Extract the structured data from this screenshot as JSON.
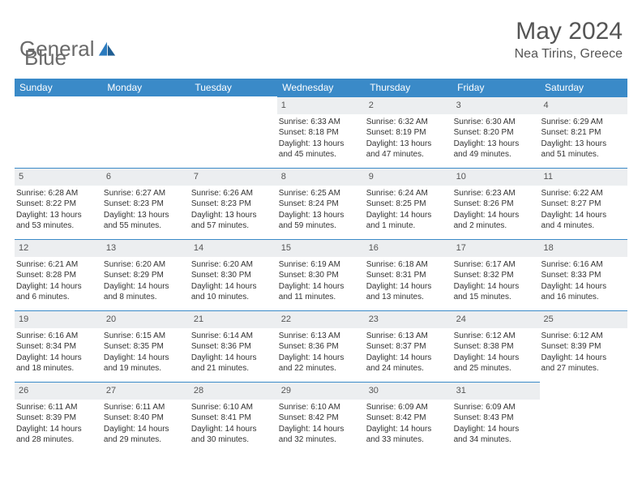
{
  "logo": {
    "text_a": "General",
    "text_b": "Blue"
  },
  "header": {
    "month": "May 2024",
    "location": "Nea Tirins, Greece"
  },
  "day_names": [
    "Sunday",
    "Monday",
    "Tuesday",
    "Wednesday",
    "Thursday",
    "Friday",
    "Saturday"
  ],
  "colors": {
    "header_bg": "#3a8ac8",
    "header_text": "#ffffff",
    "daynum_bg": "#eceef0",
    "border": "#3a8ac8",
    "text": "#333333",
    "brand_blue": "#2b7bbf",
    "brand_gray": "#6a6a6a"
  },
  "weeks": [
    [
      {
        "empty": true
      },
      {
        "empty": true
      },
      {
        "empty": true
      },
      {
        "day": "1",
        "sunrise": "Sunrise: 6:33 AM",
        "sunset": "Sunset: 8:18 PM",
        "dl1": "Daylight: 13 hours",
        "dl2": "and 45 minutes."
      },
      {
        "day": "2",
        "sunrise": "Sunrise: 6:32 AM",
        "sunset": "Sunset: 8:19 PM",
        "dl1": "Daylight: 13 hours",
        "dl2": "and 47 minutes."
      },
      {
        "day": "3",
        "sunrise": "Sunrise: 6:30 AM",
        "sunset": "Sunset: 8:20 PM",
        "dl1": "Daylight: 13 hours",
        "dl2": "and 49 minutes."
      },
      {
        "day": "4",
        "sunrise": "Sunrise: 6:29 AM",
        "sunset": "Sunset: 8:21 PM",
        "dl1": "Daylight: 13 hours",
        "dl2": "and 51 minutes."
      }
    ],
    [
      {
        "day": "5",
        "sunrise": "Sunrise: 6:28 AM",
        "sunset": "Sunset: 8:22 PM",
        "dl1": "Daylight: 13 hours",
        "dl2": "and 53 minutes."
      },
      {
        "day": "6",
        "sunrise": "Sunrise: 6:27 AM",
        "sunset": "Sunset: 8:23 PM",
        "dl1": "Daylight: 13 hours",
        "dl2": "and 55 minutes."
      },
      {
        "day": "7",
        "sunrise": "Sunrise: 6:26 AM",
        "sunset": "Sunset: 8:23 PM",
        "dl1": "Daylight: 13 hours",
        "dl2": "and 57 minutes."
      },
      {
        "day": "8",
        "sunrise": "Sunrise: 6:25 AM",
        "sunset": "Sunset: 8:24 PM",
        "dl1": "Daylight: 13 hours",
        "dl2": "and 59 minutes."
      },
      {
        "day": "9",
        "sunrise": "Sunrise: 6:24 AM",
        "sunset": "Sunset: 8:25 PM",
        "dl1": "Daylight: 14 hours",
        "dl2": "and 1 minute."
      },
      {
        "day": "10",
        "sunrise": "Sunrise: 6:23 AM",
        "sunset": "Sunset: 8:26 PM",
        "dl1": "Daylight: 14 hours",
        "dl2": "and 2 minutes."
      },
      {
        "day": "11",
        "sunrise": "Sunrise: 6:22 AM",
        "sunset": "Sunset: 8:27 PM",
        "dl1": "Daylight: 14 hours",
        "dl2": "and 4 minutes."
      }
    ],
    [
      {
        "day": "12",
        "sunrise": "Sunrise: 6:21 AM",
        "sunset": "Sunset: 8:28 PM",
        "dl1": "Daylight: 14 hours",
        "dl2": "and 6 minutes."
      },
      {
        "day": "13",
        "sunrise": "Sunrise: 6:20 AM",
        "sunset": "Sunset: 8:29 PM",
        "dl1": "Daylight: 14 hours",
        "dl2": "and 8 minutes."
      },
      {
        "day": "14",
        "sunrise": "Sunrise: 6:20 AM",
        "sunset": "Sunset: 8:30 PM",
        "dl1": "Daylight: 14 hours",
        "dl2": "and 10 minutes."
      },
      {
        "day": "15",
        "sunrise": "Sunrise: 6:19 AM",
        "sunset": "Sunset: 8:30 PM",
        "dl1": "Daylight: 14 hours",
        "dl2": "and 11 minutes."
      },
      {
        "day": "16",
        "sunrise": "Sunrise: 6:18 AM",
        "sunset": "Sunset: 8:31 PM",
        "dl1": "Daylight: 14 hours",
        "dl2": "and 13 minutes."
      },
      {
        "day": "17",
        "sunrise": "Sunrise: 6:17 AM",
        "sunset": "Sunset: 8:32 PM",
        "dl1": "Daylight: 14 hours",
        "dl2": "and 15 minutes."
      },
      {
        "day": "18",
        "sunrise": "Sunrise: 6:16 AM",
        "sunset": "Sunset: 8:33 PM",
        "dl1": "Daylight: 14 hours",
        "dl2": "and 16 minutes."
      }
    ],
    [
      {
        "day": "19",
        "sunrise": "Sunrise: 6:16 AM",
        "sunset": "Sunset: 8:34 PM",
        "dl1": "Daylight: 14 hours",
        "dl2": "and 18 minutes."
      },
      {
        "day": "20",
        "sunrise": "Sunrise: 6:15 AM",
        "sunset": "Sunset: 8:35 PM",
        "dl1": "Daylight: 14 hours",
        "dl2": "and 19 minutes."
      },
      {
        "day": "21",
        "sunrise": "Sunrise: 6:14 AM",
        "sunset": "Sunset: 8:36 PM",
        "dl1": "Daylight: 14 hours",
        "dl2": "and 21 minutes."
      },
      {
        "day": "22",
        "sunrise": "Sunrise: 6:13 AM",
        "sunset": "Sunset: 8:36 PM",
        "dl1": "Daylight: 14 hours",
        "dl2": "and 22 minutes."
      },
      {
        "day": "23",
        "sunrise": "Sunrise: 6:13 AM",
        "sunset": "Sunset: 8:37 PM",
        "dl1": "Daylight: 14 hours",
        "dl2": "and 24 minutes."
      },
      {
        "day": "24",
        "sunrise": "Sunrise: 6:12 AM",
        "sunset": "Sunset: 8:38 PM",
        "dl1": "Daylight: 14 hours",
        "dl2": "and 25 minutes."
      },
      {
        "day": "25",
        "sunrise": "Sunrise: 6:12 AM",
        "sunset": "Sunset: 8:39 PM",
        "dl1": "Daylight: 14 hours",
        "dl2": "and 27 minutes."
      }
    ],
    [
      {
        "day": "26",
        "sunrise": "Sunrise: 6:11 AM",
        "sunset": "Sunset: 8:39 PM",
        "dl1": "Daylight: 14 hours",
        "dl2": "and 28 minutes."
      },
      {
        "day": "27",
        "sunrise": "Sunrise: 6:11 AM",
        "sunset": "Sunset: 8:40 PM",
        "dl1": "Daylight: 14 hours",
        "dl2": "and 29 minutes."
      },
      {
        "day": "28",
        "sunrise": "Sunrise: 6:10 AM",
        "sunset": "Sunset: 8:41 PM",
        "dl1": "Daylight: 14 hours",
        "dl2": "and 30 minutes."
      },
      {
        "day": "29",
        "sunrise": "Sunrise: 6:10 AM",
        "sunset": "Sunset: 8:42 PM",
        "dl1": "Daylight: 14 hours",
        "dl2": "and 32 minutes."
      },
      {
        "day": "30",
        "sunrise": "Sunrise: 6:09 AM",
        "sunset": "Sunset: 8:42 PM",
        "dl1": "Daylight: 14 hours",
        "dl2": "and 33 minutes."
      },
      {
        "day": "31",
        "sunrise": "Sunrise: 6:09 AM",
        "sunset": "Sunset: 8:43 PM",
        "dl1": "Daylight: 14 hours",
        "dl2": "and 34 minutes."
      },
      {
        "empty": true
      }
    ]
  ]
}
